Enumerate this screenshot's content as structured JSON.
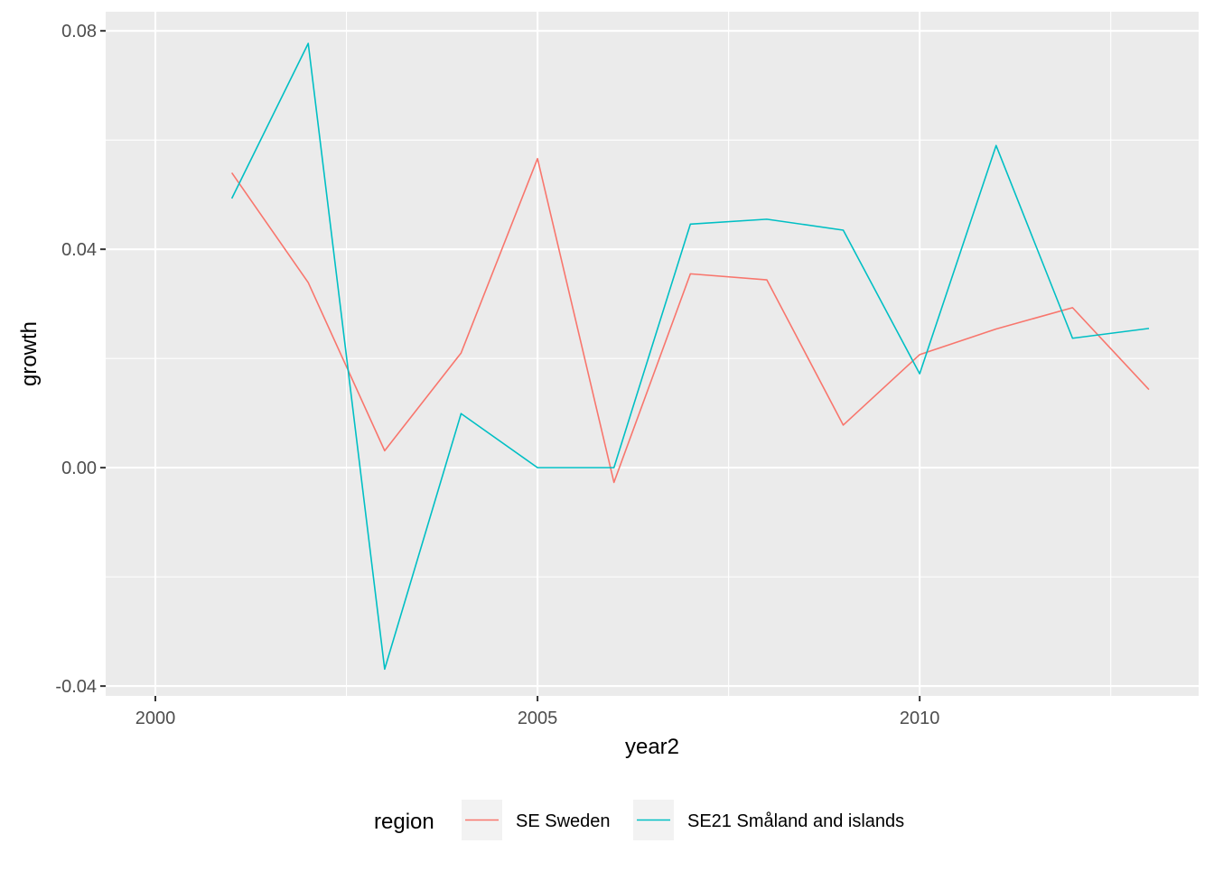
{
  "chart_data": {
    "type": "line",
    "xlabel": "year2",
    "ylabel": "growth",
    "xlim": [
      1999.35,
      2013.65
    ],
    "ylim": [
      -0.0418,
      0.0835
    ],
    "x_ticks": [
      2000,
      2005,
      2010
    ],
    "x_tick_labels": [
      "2000",
      "2005",
      "2010"
    ],
    "y_ticks": [
      -0.04,
      0.0,
      0.04,
      0.08
    ],
    "y_tick_labels": [
      "-0.04",
      "0.00",
      "0.04",
      "0.08"
    ],
    "grid": true,
    "legend": {
      "title": "region",
      "position": "bottom"
    },
    "series": [
      {
        "name": "SE Sweden",
        "color": "#F8766D",
        "x": [
          2001,
          2002,
          2003,
          2004,
          2005,
          2006,
          2007,
          2008,
          2009,
          2010,
          2011,
          2012,
          2013
        ],
        "y": [
          0.054,
          0.0339,
          0.0031,
          0.021,
          0.0566,
          -0.0027,
          0.0355,
          0.0344,
          0.0078,
          0.0207,
          0.0254,
          0.0293,
          0.0143
        ]
      },
      {
        "name": "SE21 Småland and islands",
        "color": "#00BFC4",
        "x": [
          2001,
          2002,
          2003,
          2004,
          2005,
          2006,
          2007,
          2008,
          2009,
          2010,
          2011,
          2012,
          2013
        ],
        "y": [
          0.0493,
          0.0777,
          -0.0369,
          0.0099,
          0.0,
          0.0,
          0.0446,
          0.0455,
          0.0435,
          0.0172,
          0.059,
          0.0237,
          0.0255
        ]
      }
    ]
  }
}
